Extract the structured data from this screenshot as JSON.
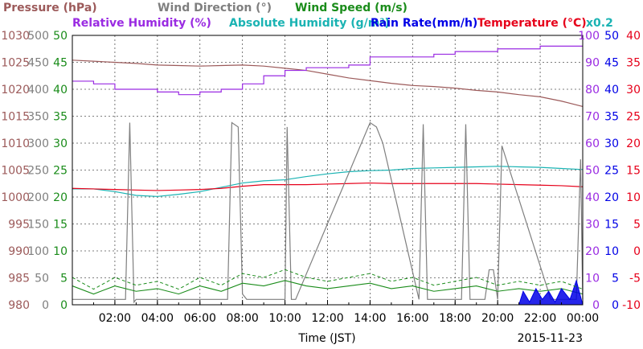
{
  "chart_data": {
    "type": "line",
    "x_label": "Time (JST)",
    "date": "2015-11-23",
    "x_ticks": [
      "02:00",
      "04:00",
      "06:00",
      "08:00",
      "10:00",
      "12:00",
      "14:00",
      "16:00",
      "18:00",
      "20:00",
      "22:00",
      "00:00"
    ],
    "xlim_hours": [
      0,
      24
    ],
    "grid": true,
    "colors": {
      "pressure": "#9c5a5a",
      "wind_direction": "#7f7f7f",
      "wind_speed": "#1a8c1a",
      "relative_humidity": "#9a2be2",
      "absolute_humidity": "#1ab3b3",
      "rain_rate": "#0000e6",
      "temperature": "#e6001a"
    },
    "legend": {
      "line1": [
        {
          "key": "pressure",
          "text": "Pressure (hPa)"
        },
        {
          "key": "wind_direction",
          "text": "Wind Direction (°)"
        },
        {
          "key": "wind_speed",
          "text": "Wind Speed (m/s)"
        }
      ],
      "line2": [
        {
          "key": "relative_humidity",
          "text": "Relative Humidity (%)"
        },
        {
          "key": "absolute_humidity",
          "text": "Absolute Humidity (g/m³)"
        },
        {
          "key": "rain_rate",
          "text": "Rain Rate(mm/h)"
        },
        {
          "key": "temperature",
          "text": "Temperature (°C)"
        },
        {
          "key": "absolute_humidity",
          "text": "x0.2"
        }
      ]
    },
    "axes": {
      "pressure": {
        "range": [
          980,
          1030
        ],
        "ticks": [
          "1030",
          "1025",
          "1020",
          "1015",
          "1010",
          "1005",
          "1000",
          "995",
          "990",
          "985",
          "980"
        ]
      },
      "wind_direction": {
        "range": [
          0,
          500
        ],
        "ticks": [
          "500",
          "450",
          "400",
          "350",
          "300",
          "250",
          "200",
          "150",
          "100",
          "50",
          "0"
        ]
      },
      "wind_speed": {
        "range": [
          0,
          50
        ],
        "ticks": [
          "50",
          "45",
          "40",
          "35",
          "30",
          "25",
          "20",
          "15",
          "10",
          "5",
          "0"
        ]
      },
      "relative_humidity": {
        "range": [
          0,
          100
        ],
        "ticks": [
          "100",
          "90",
          "80",
          "70",
          "60",
          "50",
          "40",
          "30",
          "20",
          "10",
          "0"
        ]
      },
      "rain_rate": {
        "range": [
          0,
          50
        ],
        "ticks": [
          "50",
          "45",
          "40",
          "35",
          "30",
          "25",
          "20",
          "15",
          "10",
          "5",
          "0"
        ]
      },
      "temperature": {
        "range": [
          -10,
          40
        ],
        "ticks": [
          "40",
          "35",
          "30",
          "25",
          "20",
          "15",
          "10",
          "5",
          "0",
          "-5",
          "-10"
        ]
      }
    },
    "series": [
      {
        "name": "Pressure (hPa)",
        "axis": "pressure",
        "x": [
          0,
          1,
          2,
          3,
          4,
          5,
          6,
          7,
          8,
          9,
          10,
          11,
          12,
          13,
          14,
          15,
          16,
          17,
          18,
          19,
          20,
          21,
          22,
          23,
          24
        ],
        "y": [
          1025.4,
          1025.2,
          1025.0,
          1024.8,
          1024.5,
          1024.4,
          1024.3,
          1024.4,
          1024.5,
          1024.3,
          1023.9,
          1023.5,
          1022.8,
          1022.1,
          1021.6,
          1021.1,
          1020.7,
          1020.5,
          1020.2,
          1019.8,
          1019.5,
          1019.0,
          1018.6,
          1017.8,
          1016.8
        ]
      },
      {
        "name": "Relative Humidity (%)",
        "axis": "relative_humidity",
        "x": [
          0,
          1,
          2,
          3,
          4,
          5,
          6,
          7,
          8,
          9,
          10,
          11,
          12,
          13,
          14,
          15,
          16,
          17,
          18,
          19,
          20,
          21,
          22,
          23,
          24
        ],
        "y": [
          83,
          82,
          80,
          80,
          79,
          78,
          79,
          80,
          82,
          85,
          87,
          88,
          88,
          89,
          92,
          92,
          92,
          93,
          94,
          94,
          95,
          95,
          96,
          96,
          96
        ]
      },
      {
        "name": "Absolute Humidity (g/m³) x0.2",
        "axis": "rain_rate",
        "x": [
          0,
          1,
          2,
          3,
          4,
          5,
          6,
          7,
          8,
          9,
          10,
          11,
          12,
          13,
          14,
          15,
          16,
          17,
          18,
          19,
          20,
          21,
          22,
          23,
          24
        ],
        "y": [
          21.5,
          21.5,
          21.0,
          20.3,
          20.1,
          20.5,
          21.0,
          21.8,
          22.6,
          23.0,
          23.2,
          23.8,
          24.3,
          24.7,
          24.9,
          25.0,
          25.3,
          25.4,
          25.5,
          25.6,
          25.7,
          25.6,
          25.5,
          25.3,
          25.1
        ]
      },
      {
        "name": "Temperature (°C)",
        "axis": "temperature",
        "x": [
          0,
          1,
          2,
          3,
          4,
          5,
          6,
          7,
          8,
          9,
          10,
          11,
          12,
          13,
          14,
          15,
          16,
          17,
          18,
          19,
          20,
          21,
          22,
          23,
          24
        ],
        "y": [
          11.6,
          11.5,
          11.4,
          11.3,
          11.2,
          11.3,
          11.4,
          11.6,
          12.0,
          12.3,
          12.3,
          12.3,
          12.4,
          12.5,
          12.6,
          12.5,
          12.5,
          12.5,
          12.5,
          12.5,
          12.4,
          12.3,
          12.2,
          12.1,
          11.9
        ]
      },
      {
        "name": "Wind Direction (°)",
        "axis": "wind_direction",
        "x": [
          0,
          2.5,
          2.7,
          2.9,
          3.0,
          3.2,
          7.3,
          7.5,
          7.8,
          8.0,
          8.2,
          10.0,
          10.1,
          10.3,
          10.5,
          14.0,
          14.3,
          14.6,
          16.3,
          16.5,
          16.7,
          18.3,
          18.5,
          18.7,
          19.4,
          19.6,
          19.8,
          20.0,
          20.2,
          22.5,
          23.7,
          23.9,
          24
        ],
        "y": [
          10,
          10,
          338,
          5,
          10,
          10,
          10,
          338,
          330,
          20,
          10,
          10,
          330,
          10,
          10,
          338,
          330,
          300,
          10,
          335,
          10,
          10,
          335,
          10,
          10,
          65,
          65,
          10,
          295,
          10,
          10,
          270,
          10
        ]
      },
      {
        "name": "Wind Speed (m/s)",
        "axis": "wind_speed",
        "x": [
          0,
          1,
          2,
          3,
          4,
          5,
          6,
          7,
          8,
          9,
          10,
          11,
          12,
          13,
          14,
          15,
          16,
          17,
          18,
          19,
          20,
          21,
          22,
          23,
          24
        ],
        "y": [
          3.5,
          2.0,
          3.5,
          2.5,
          3.0,
          2.0,
          3.5,
          2.5,
          4.0,
          3.5,
          4.5,
          3.5,
          3.0,
          3.5,
          4.0,
          3.0,
          3.5,
          2.5,
          3.0,
          3.5,
          2.5,
          3.0,
          2.5,
          3.0,
          2.0
        ]
      },
      {
        "name": "Rain Rate(mm/h)",
        "axis": "rain_rate",
        "x": [
          0,
          21.0,
          21.2,
          21.5,
          21.8,
          22.1,
          22.4,
          22.7,
          23.0,
          23.4,
          23.7,
          24.0
        ],
        "y": [
          0,
          0,
          2.5,
          0.5,
          3.0,
          1.0,
          2.5,
          0.5,
          3.0,
          1.0,
          4.5,
          0
        ]
      }
    ]
  }
}
